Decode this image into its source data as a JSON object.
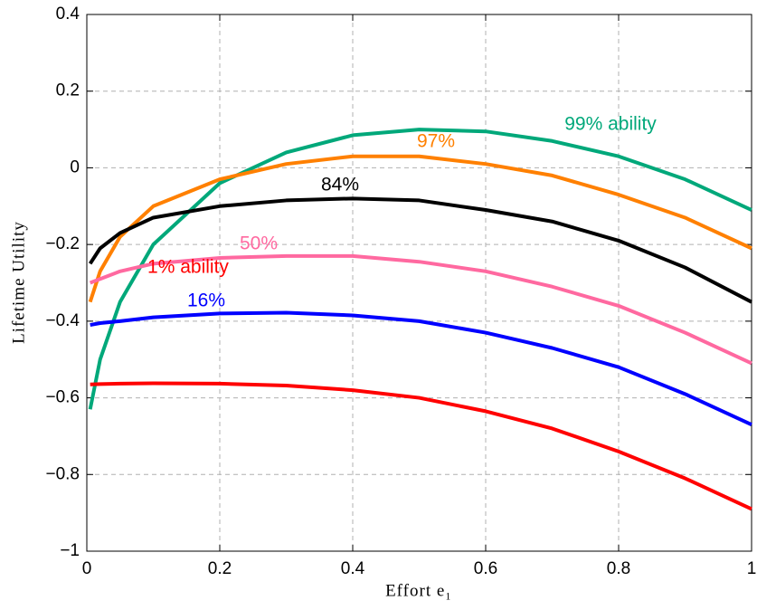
{
  "chart_data": {
    "type": "line",
    "xlabel": "Effort e₁",
    "ylabel": "Lifetime Utility",
    "x": [
      0.005,
      0.02,
      0.05,
      0.1,
      0.2,
      0.3,
      0.4,
      0.5,
      0.6,
      0.7,
      0.8,
      0.9,
      1.0
    ],
    "series": [
      {
        "name": "99% ability",
        "color": "#00a87a",
        "values": [
          -0.63,
          -0.5,
          -0.35,
          -0.2,
          -0.04,
          0.04,
          0.085,
          0.1,
          0.095,
          0.07,
          0.03,
          -0.03,
          -0.11
        ]
      },
      {
        "name": "97%",
        "color": "#ff8000",
        "values": [
          -0.35,
          -0.27,
          -0.18,
          -0.1,
          -0.03,
          0.01,
          0.03,
          0.03,
          0.01,
          -0.02,
          -0.07,
          -0.13,
          -0.21
        ]
      },
      {
        "name": "84%",
        "color": "#000000",
        "values": [
          -0.25,
          -0.21,
          -0.17,
          -0.13,
          -0.1,
          -0.085,
          -0.08,
          -0.085,
          -0.11,
          -0.14,
          -0.19,
          -0.26,
          -0.35
        ]
      },
      {
        "name": "50%",
        "color": "#ff69a0",
        "values": [
          -0.3,
          -0.29,
          -0.27,
          -0.25,
          -0.235,
          -0.23,
          -0.23,
          -0.245,
          -0.27,
          -0.31,
          -0.36,
          -0.43,
          -0.51
        ]
      },
      {
        "name": "16%",
        "color": "#0000ff",
        "values": [
          -0.41,
          -0.405,
          -0.4,
          -0.39,
          -0.38,
          -0.378,
          -0.385,
          -0.4,
          -0.43,
          -0.47,
          -0.52,
          -0.59,
          -0.67
        ]
      },
      {
        "name": "1% ability",
        "color": "#ff0000",
        "values": [
          -0.565,
          -0.564,
          -0.563,
          -0.562,
          -0.563,
          -0.568,
          -0.58,
          -0.6,
          -0.635,
          -0.68,
          -0.74,
          -0.81,
          -0.89
        ]
      }
    ],
    "xlim": [
      0,
      1
    ],
    "xticks": [
      0,
      0.2,
      0.4,
      0.6,
      0.8,
      1
    ],
    "ylim": [
      -1,
      0.4
    ],
    "yticks": [
      {
        "value": -1,
        "label": "−1"
      },
      {
        "value": -0.8,
        "label": "−0.8"
      },
      {
        "value": -0.6,
        "label": "−0.6"
      },
      {
        "value": -0.4,
        "label": "−0.4"
      },
      {
        "value": -0.2,
        "label": "−0.2"
      },
      0,
      0.2,
      0.4
    ],
    "grid": true
  }
}
